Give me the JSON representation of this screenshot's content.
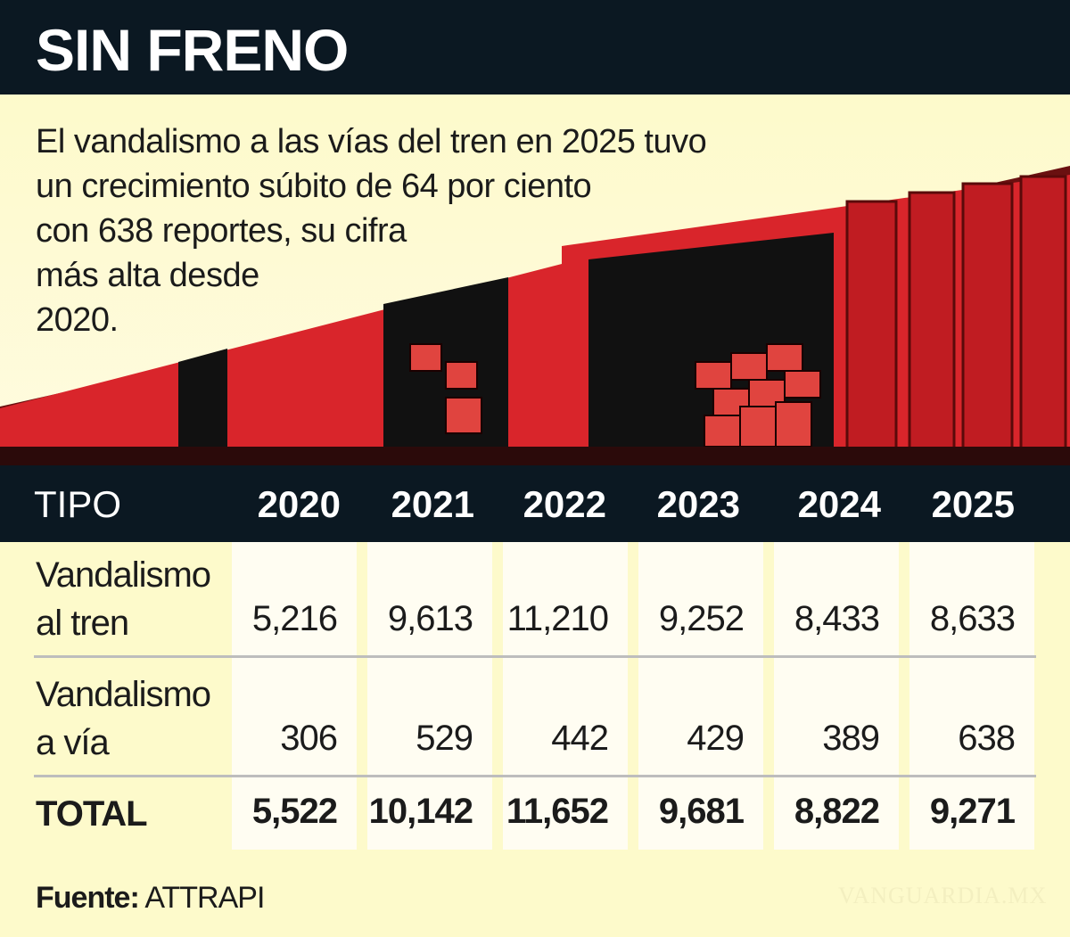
{
  "title": "SIN FRENO",
  "intro": "El vandalismo a las vías del tren en 2025 tuvo un crecimiento súbito de 64 por ciento con 638 reportes, su cifra más alta desde 2020.",
  "intro_lines": [
    "El vandalismo a las vías del tren en 2025 tuvo",
    "un crecimiento súbito de 64 por ciento",
    "con 638 reportes, su cifra",
    "más alta desde",
    "2020."
  ],
  "colors": {
    "header": "#0b1822",
    "background": "#fdfacb",
    "train": "#d9252b"
  },
  "chart_data": {
    "type": "table",
    "columns": [
      "TIPO",
      "2020",
      "2021",
      "2022",
      "2023",
      "2024",
      "2025"
    ],
    "rows": [
      {
        "label_lines": [
          "Vandalismo",
          "al tren"
        ],
        "values": [
          "5,216",
          "9,613",
          "11,210",
          "9,252",
          "8,433",
          "8,633"
        ]
      },
      {
        "label_lines": [
          "Vandalismo",
          "a vía"
        ],
        "values": [
          "306",
          "529",
          "442",
          "429",
          "389",
          "638"
        ]
      },
      {
        "label_lines": [
          "TOTAL"
        ],
        "values": [
          "5,522",
          "10,142",
          "11,652",
          "9,681",
          "8,822",
          "9,271"
        ]
      }
    ]
  },
  "source": {
    "label": "Fuente:",
    "value": "ATTRAPI"
  },
  "watermark": "VANGUARDIA MX"
}
